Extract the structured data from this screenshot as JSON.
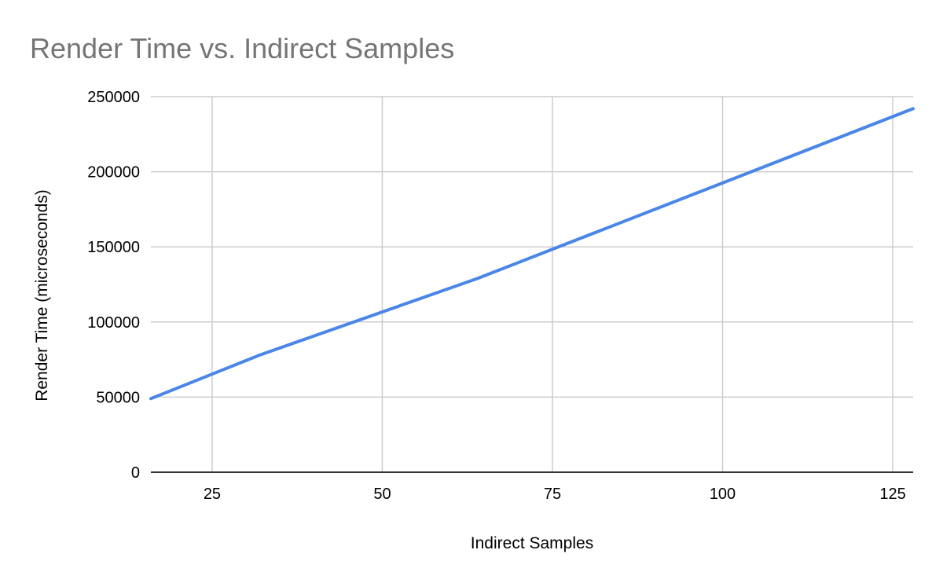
{
  "chart_data": {
    "type": "line",
    "title": "Render Time vs. Indirect Samples",
    "xlabel": "Indirect Samples",
    "ylabel": "Render Time (microseconds)",
    "xlim": [
      16,
      128
    ],
    "ylim": [
      0,
      250000
    ],
    "xticks": [
      25,
      50,
      75,
      100,
      125
    ],
    "yticks": [
      0,
      50000,
      100000,
      150000,
      200000,
      250000
    ],
    "grid": true,
    "legend": "none",
    "colors": {
      "series": "#4a86e8",
      "title": "#757575",
      "grid": "#cccccc",
      "baseline": "#333333"
    },
    "series": [
      {
        "x": [
          16,
          32,
          64,
          128
        ],
        "y": [
          49000,
          78000,
          129000,
          242000
        ]
      }
    ]
  }
}
